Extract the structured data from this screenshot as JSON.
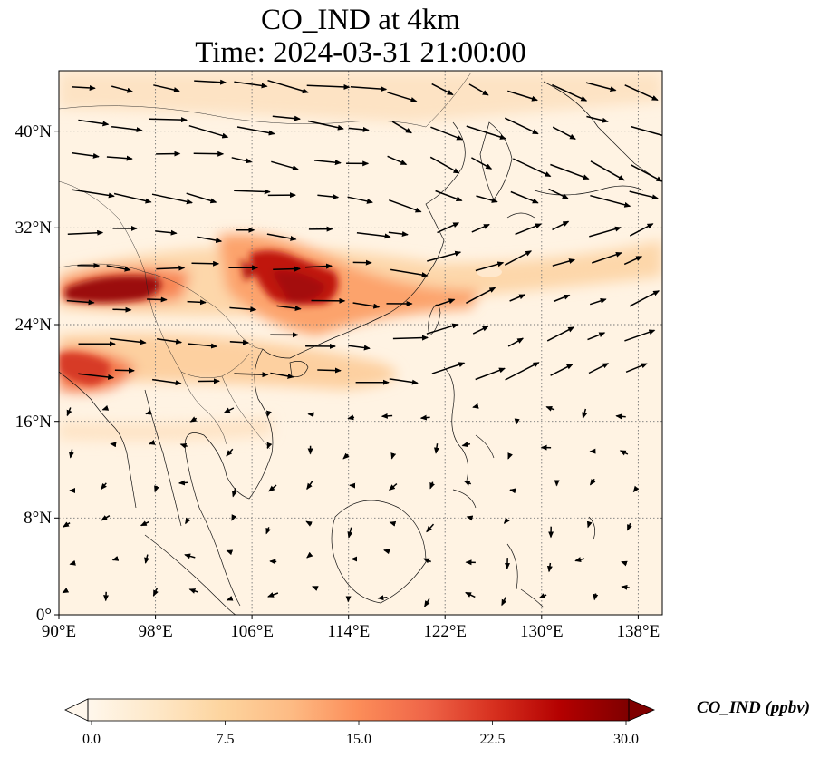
{
  "title": {
    "line1": "CO_IND at 4km",
    "line2": "Time: 2024-03-31 21:00:00"
  },
  "map": {
    "extent": {
      "lon": [
        90,
        140
      ],
      "lat": [
        0,
        45
      ]
    },
    "lon_ticks": [
      "90°E",
      "98°E",
      "106°E",
      "114°E",
      "122°E",
      "130°E",
      "138°E"
    ],
    "lat_ticks": [
      "0°",
      "8°N",
      "16°N",
      "24°N",
      "32°N",
      "40°N"
    ],
    "gridlines": true,
    "features": [
      "coastlines",
      "country borders",
      "wind vectors"
    ]
  },
  "colorbar": {
    "label": "CO_IND (ppbv)",
    "ticks": [
      "0.0",
      "7.5",
      "15.0",
      "22.5",
      "30.0"
    ],
    "range": [
      0,
      30
    ],
    "extend": "both",
    "colormap": "OrRd",
    "colors": [
      "#fff7ec",
      "#fee8c8",
      "#fdd49e",
      "#fdbb84",
      "#fc8d59",
      "#ef6548",
      "#d7301f",
      "#b30000",
      "#7f0000"
    ]
  }
}
